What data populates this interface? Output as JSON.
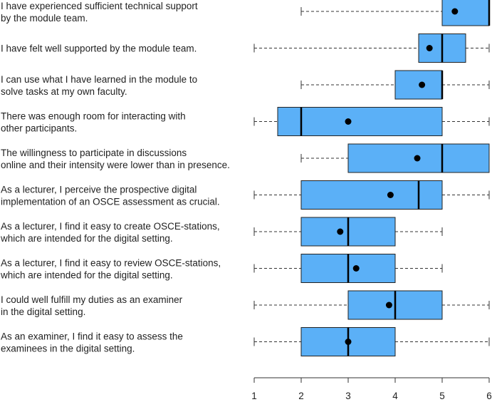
{
  "chart_data": {
    "type": "boxplot",
    "orientation": "horizontal",
    "xlim": [
      1,
      6
    ],
    "xticks": [
      "1",
      "2",
      "3",
      "4",
      "5",
      "6"
    ],
    "box_color": "#5BB0F7",
    "mean_marker_color": "#000000",
    "items": [
      {
        "label": [
          "I have experienced sufficient technical support",
          "by the module team."
        ],
        "min": 2,
        "q1": 5,
        "median": 6,
        "q3": 6,
        "max": 6,
        "mean": 5.27
      },
      {
        "label": [
          "I have felt well supported by the module team."
        ],
        "min": 1,
        "q1": 4.5,
        "median": 5,
        "q3": 5.5,
        "max": 6,
        "mean": 4.73
      },
      {
        "label": [
          "I can use what I have learned in the module to",
          "solve tasks at my own faculty."
        ],
        "min": 2,
        "q1": 4,
        "median": 5,
        "q3": 5,
        "max": 6,
        "mean": 4.57
      },
      {
        "label": [
          "There was enough room for interacting with",
          "other participants."
        ],
        "min": 1,
        "q1": 1.5,
        "median": 2,
        "q3": 5,
        "max": 6,
        "mean": 3.0
      },
      {
        "label": [
          "The willingness to participate in discussions",
          "online and their intensity were lower than in presence."
        ],
        "min": 2,
        "q1": 3,
        "median": 5,
        "q3": 6,
        "max": 6,
        "mean": 4.47
      },
      {
        "label": [
          "As a lecturer, I perceive the prospective digital",
          "implementation of an OSCE assessment as crucial."
        ],
        "min": 1,
        "q1": 2,
        "median": 4.5,
        "q3": 5,
        "max": 6,
        "mean": 3.9
      },
      {
        "label": [
          "As a lecturer, I find it easy to create OSCE-stations,",
          "which are intended for the digital setting."
        ],
        "min": 1,
        "q1": 2,
        "median": 3,
        "q3": 4,
        "max": 5,
        "mean": 2.83
      },
      {
        "label": [
          "As a lecturer, I find it easy to review OSCE-stations,",
          "which are intended for the digital setting."
        ],
        "min": 1,
        "q1": 2,
        "median": 3,
        "q3": 4,
        "max": 5,
        "mean": 3.17
      },
      {
        "label": [
          "I could well fulfill my duties as an examiner",
          "in the digital setting."
        ],
        "min": 1,
        "q1": 3,
        "median": 4,
        "q3": 5,
        "max": 6,
        "mean": 3.87
      },
      {
        "label": [
          "As an examiner, I find it easy to assess the",
          "examinees in the digital setting."
        ],
        "min": 1,
        "q1": 2,
        "median": 3,
        "q3": 4,
        "max": 6,
        "mean": 3.0
      }
    ]
  }
}
